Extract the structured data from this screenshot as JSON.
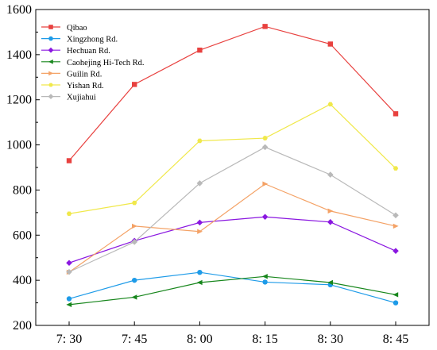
{
  "chart_data": {
    "type": "line",
    "title": "",
    "xlabel": "",
    "ylabel": "",
    "categories": [
      "7: 30",
      "7: 45",
      "8: 00",
      "8: 15",
      "8: 30",
      "8: 45"
    ],
    "ylim": [
      200,
      1600
    ],
    "yticks": [
      "200",
      "400",
      "600",
      "800",
      "1000",
      "1200",
      "1400",
      "1600"
    ],
    "grid": false,
    "legend_position": "top-left",
    "series": [
      {
        "name": "Qibao",
        "color": "#e8413f",
        "marker": "square",
        "values": [
          930,
          1268,
          1420,
          1525,
          1447,
          1138
        ]
      },
      {
        "name": "Xingzhong Rd.",
        "color": "#1e9be8",
        "marker": "circle",
        "values": [
          318,
          400,
          435,
          392,
          380,
          300
        ]
      },
      {
        "name": "Hechuan Rd.",
        "color": "#8a17e0",
        "marker": "diamond",
        "values": [
          477,
          575,
          656,
          681,
          658,
          530
        ]
      },
      {
        "name": "Caohejing Hi-Tech Rd.",
        "color": "#17861c",
        "marker": "triangle-left",
        "values": [
          292,
          325,
          390,
          417,
          390,
          336
        ]
      },
      {
        "name": "Guilin Rd.",
        "color": "#f4a266",
        "marker": "triangle-right",
        "values": [
          436,
          640,
          616,
          827,
          707,
          640
        ]
      },
      {
        "name": "Yishan Rd.",
        "color": "#f0e84a",
        "marker": "hexagon",
        "values": [
          695,
          743,
          1018,
          1030,
          1180,
          896
        ]
      },
      {
        "name": "Xujiahui",
        "color": "#b9b9b9",
        "marker": "diamond",
        "values": [
          437,
          570,
          830,
          990,
          868,
          688
        ]
      }
    ]
  }
}
